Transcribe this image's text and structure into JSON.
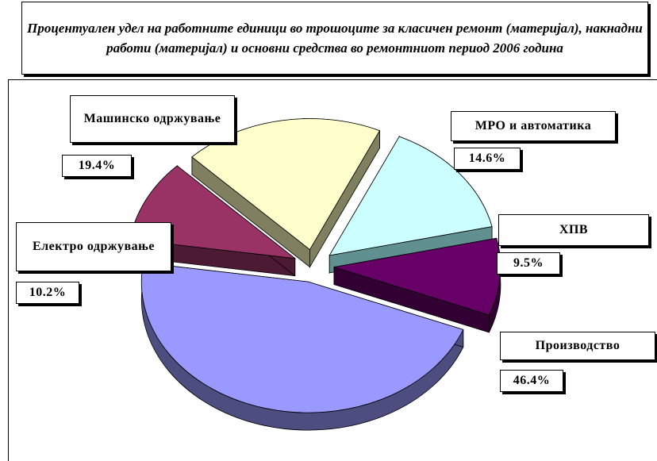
{
  "chart_data": {
    "type": "pie",
    "title": "Процентуален удел на работните единици во трошоците за класичен ремонт (материјал), накнадни работи (материјал) и основни средства во ремонтниот период 2006 година",
    "categories": [
      "Машинско одржување",
      "МРО и автоматика",
      "ХПВ",
      "Производство",
      "Електро одржување"
    ],
    "values": [
      19.4,
      14.6,
      9.5,
      46.4,
      10.2
    ],
    "value_labels": [
      "19.4%",
      "14.6%",
      "9.5%",
      "46.4%",
      "10.2%"
    ],
    "colors": [
      "#ffffcc",
      "#ccffff",
      "#660066",
      "#9999ff",
      "#993366"
    ],
    "side_colors": [
      "#808060",
      "#609090",
      "#330033",
      "#4d4d80",
      "#4d1a33"
    ]
  }
}
